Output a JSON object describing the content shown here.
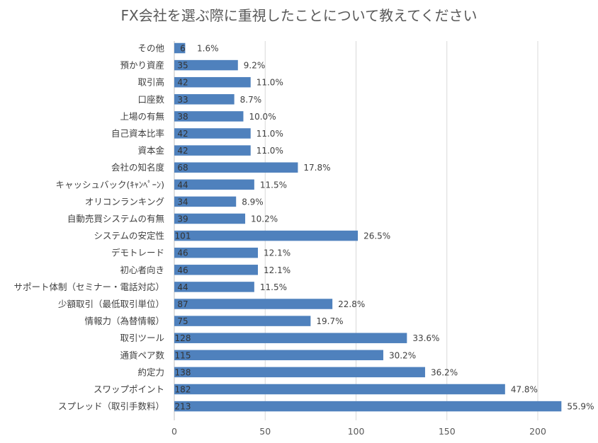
{
  "chart_data": {
    "type": "bar",
    "orientation": "horizontal",
    "title": "FX会社を選ぶ際に重視したことについて教えてください",
    "xlim": [
      0,
      230
    ],
    "xticks": [
      0,
      50,
      100,
      150,
      200
    ],
    "grid": true,
    "categories": [
      "その他",
      "預かり資産",
      "取引高",
      "口座数",
      "上場の有無",
      "自己資本比率",
      "資本金",
      "会社の知名度",
      "キャッシュバック(ｷｬﾝﾍﾟｰﾝ)",
      "オリコンランキング",
      "自動売買システムの有無",
      "システムの安定性",
      "デモトレード",
      "初心者向き",
      "サポート体制（セミナー・電話対応）",
      "少額取引（最低取引単位）",
      "情報力（為替情報）",
      "取引ツール",
      "通貨ペア数",
      "約定力",
      "スワップポイント",
      "スプレッド（取引手数料）"
    ],
    "values": [
      6,
      35,
      42,
      33,
      38,
      42,
      42,
      68,
      44,
      34,
      39,
      101,
      46,
      46,
      44,
      87,
      75,
      128,
      115,
      138,
      182,
      213
    ],
    "percent_labels": [
      "1.6%",
      "9.2%",
      "11.0%",
      "8.7%",
      "10.0%",
      "11.0%",
      "11.0%",
      "17.8%",
      "11.5%",
      "8.9%",
      "10.2%",
      "26.5%",
      "12.1%",
      "12.1%",
      "11.5%",
      "22.8%",
      "19.7%",
      "33.6%",
      "30.2%",
      "36.2%",
      "47.8%",
      "55.9%"
    ],
    "bar_color": "#4f81bd",
    "grid_color": "#d9d9d9"
  }
}
